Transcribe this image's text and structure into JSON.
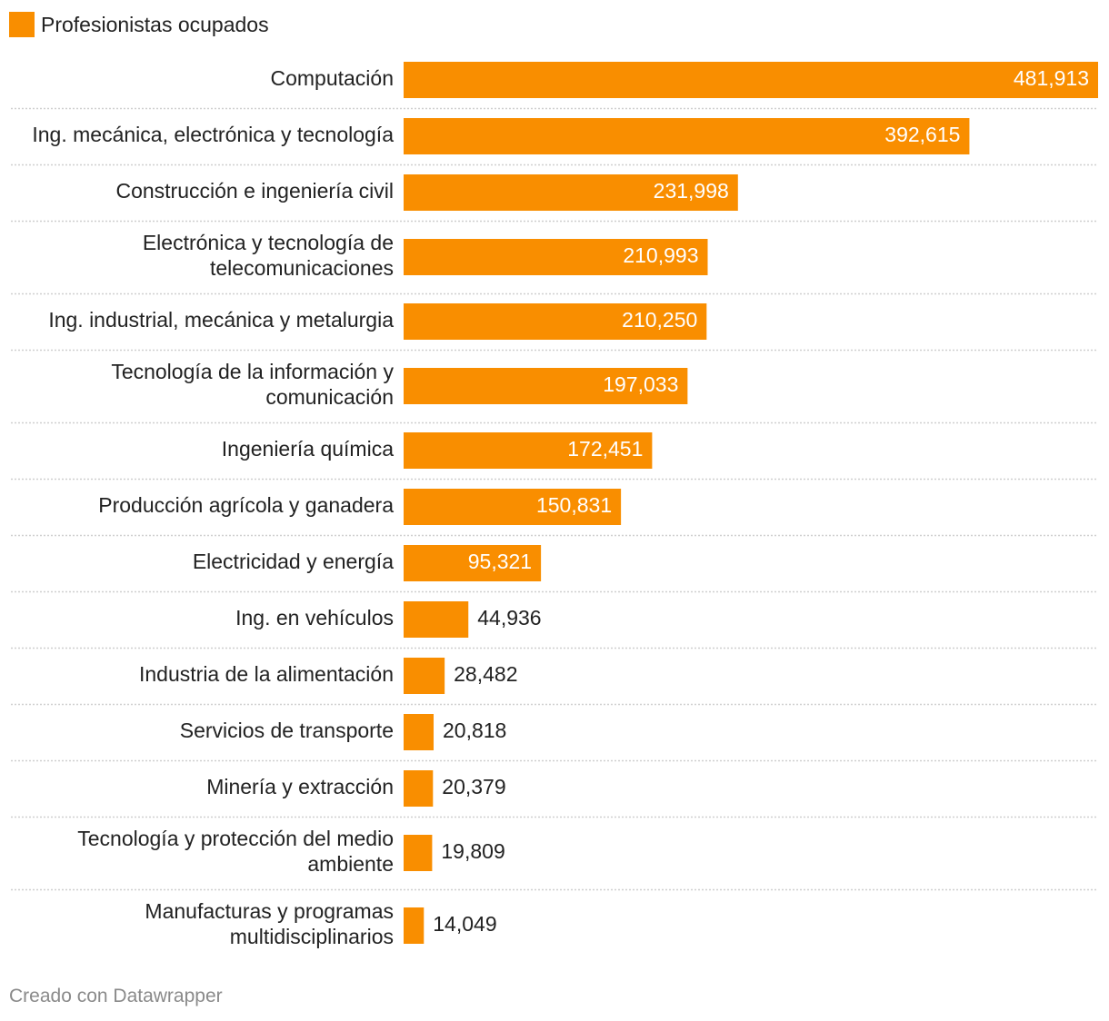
{
  "legend": {
    "label": "Profesionistas ocupados"
  },
  "colors": {
    "bar": "#f98e00",
    "label_inside": "#ffffff",
    "label_outside": "#222222",
    "grid": "#cfcfcf"
  },
  "footer": "Creado con Datawrapper",
  "chart_data": {
    "type": "bar",
    "orientation": "horizontal",
    "title": "",
    "series_name": "Profesionistas ocupados",
    "categories": [
      [
        "Computación"
      ],
      [
        "Ing. mecánica, electrónica y tecnología"
      ],
      [
        "Construcción e ingeniería civil"
      ],
      [
        "Electrónica y tecnología de",
        "telecomunicaciones"
      ],
      [
        "Ing. industrial, mecánica y metalurgia"
      ],
      [
        "Tecnología de la información y",
        "comunicación"
      ],
      [
        "Ingeniería química"
      ],
      [
        "Producción agrícola y ganadera"
      ],
      [
        "Electricidad y energía"
      ],
      [
        "Ing. en vehículos"
      ],
      [
        "Industria de la alimentación"
      ],
      [
        "Servicios de transporte"
      ],
      [
        "Minería y extracción"
      ],
      [
        "Tecnología y protección del medio",
        "ambiente"
      ],
      [
        "Manufacturas y programas",
        "multidisciplinarios"
      ]
    ],
    "values": [
      481913,
      392615,
      231998,
      210993,
      210250,
      197033,
      172451,
      150831,
      95321,
      44936,
      28482,
      20818,
      20379,
      19809,
      14049
    ],
    "value_labels": [
      "481,913",
      "392,615",
      "231,998",
      "210,993",
      "210,250",
      "197,033",
      "172,451",
      "150,831",
      "95,321",
      "44,936",
      "28,482",
      "20,818",
      "20,379",
      "19,809",
      "14,049"
    ],
    "xlim": [
      0,
      481913
    ]
  }
}
